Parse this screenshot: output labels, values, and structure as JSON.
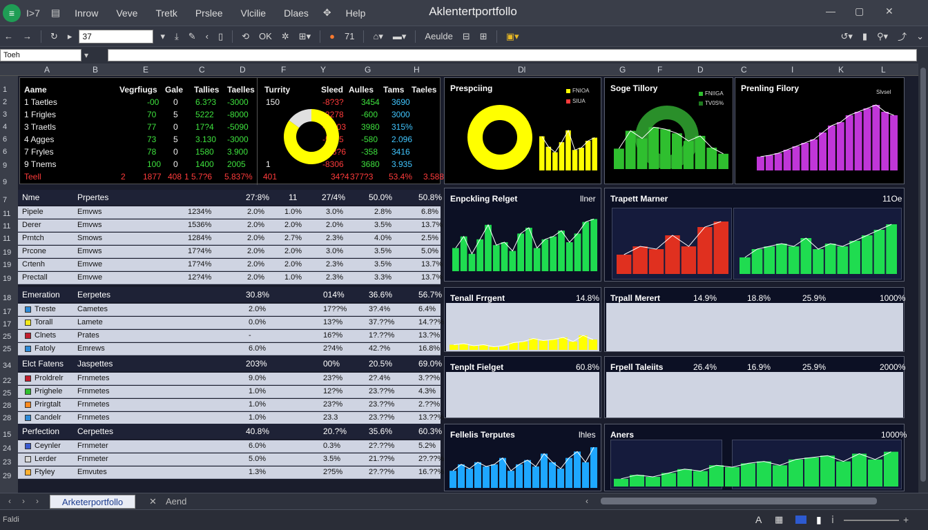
{
  "app": {
    "title": "Aklentertportfollo",
    "menu": [
      "Inrow",
      "Veve",
      "Tretk",
      "Prslee",
      "Vlcilie",
      "Dlaes",
      "Help"
    ],
    "menu_prefix": "I>7"
  },
  "toolbar": {
    "font_value": "37",
    "ok_label": "OK",
    "zoom_label": "71",
    "align_label": "Aeulde"
  },
  "formula": {
    "namebox": "Toeh"
  },
  "columns": [
    "A",
    "B",
    "E",
    "C",
    "D",
    "F",
    "Y",
    "G",
    "H",
    "Dl",
    "G",
    "F",
    "D",
    "C",
    "I",
    "K",
    "L"
  ],
  "rows": [
    "1",
    "2",
    "3",
    "4",
    "6",
    "6",
    "9",
    "9",
    "7",
    "11",
    "11",
    "11",
    "19",
    "19",
    "19",
    "18",
    "17",
    "17",
    "25",
    "25",
    "34",
    "22",
    "25",
    "28",
    "28",
    "15",
    "24",
    "23",
    "29"
  ],
  "top_table": {
    "header": [
      "Aame",
      "Vegrfiugs",
      "Gale",
      "Tallies",
      "Taelles",
      "Turrity",
      "Sleed",
      "Aulles",
      "Tams",
      "Taeles"
    ],
    "rows": [
      [
        "1 Taetles",
        "-00",
        "0",
        "6.3?3",
        "-3000",
        "150",
        "-8?3?",
        "3454",
        "3690"
      ],
      [
        "1 Frigles",
        "70",
        "5",
        "5222",
        "-8000",
        "",
        "-3278",
        "-600",
        "3000"
      ],
      [
        "3 Traetls",
        "77",
        "0",
        "17?4",
        "-5090",
        "",
        "-8.103",
        "3980",
        "315%"
      ],
      [
        "4 Agges",
        "73",
        "5",
        "3.130",
        "-3000",
        "",
        "-5295",
        "-580",
        "2.096"
      ],
      [
        "7 Fryles",
        "78",
        "0",
        "1580",
        "3.900",
        "",
        "-3.3?6",
        "-358",
        "3416"
      ],
      [
        "9 Tnems",
        "100",
        "0",
        "1400",
        "2005",
        "1",
        "-8306",
        "3680",
        "3.935"
      ],
      [
        "Teell",
        "2",
        "1877",
        "408",
        "1 5.7?6",
        "5.837%",
        "401",
        "34?4",
        "377?3",
        "53.4%",
        "3.588"
      ]
    ]
  },
  "panels": {
    "p1": {
      "title": "Prespciing",
      "legend": [
        "FNIOA",
        "SIUA"
      ]
    },
    "p2": {
      "title": "Soge Tillory",
      "legend": [
        "FNIIGA",
        "TV0S%"
      ]
    },
    "p3": {
      "title": "Prenling Filory",
      "legend": [
        "Slvsel"
      ]
    }
  },
  "section1": {
    "header": [
      "Nme",
      "Prpertes",
      "27:8%",
      "11",
      "27/4%",
      "50.0%",
      "50.8%"
    ],
    "rows": [
      [
        "Pipele",
        "Emvws",
        "1234%",
        "2.0%",
        "1.0%",
        "3.0%",
        "2.8%",
        "6.8%"
      ],
      [
        "Derer",
        "Emvws",
        "1536%",
        "2.0%",
        "2.0%",
        "2.0%",
        "3.5%",
        "13.7%"
      ],
      [
        "Prntch",
        "Smows",
        "1284%",
        "2.0%",
        "2.7%",
        "2.3%",
        "4.0%",
        "2.5%"
      ],
      [
        "Prcone",
        "Emvws",
        "17?4%",
        "2.0%",
        "2.0%",
        "3.0%",
        "3.5%",
        "5.0%"
      ],
      [
        "Crtenh",
        "Emvwe",
        "17?4%",
        "2.0%",
        "2.0%",
        "2.3%",
        "3.5%",
        "13.7%"
      ],
      [
        "Prectall",
        "Emvwe",
        "12?4%",
        "2.0%",
        "1.0%",
        "2.3%",
        "3.3%",
        "13.7%"
      ]
    ]
  },
  "section2": {
    "header": [
      "Emeration",
      "Eerpetes",
      "30.8%",
      "014%",
      "36.6%",
      "56.7%"
    ],
    "rows": [
      [
        "Treste",
        "Cametes",
        "2.0%",
        "17??%",
        "3?.4%",
        "6.4%"
      ],
      [
        "Torall",
        "Lamete",
        "0.0%",
        "13?%",
        "37.??%",
        "14.??%"
      ],
      [
        "Clnets",
        "Prates",
        "-",
        "16?%",
        "1?.??%",
        "13.?%"
      ],
      [
        "Fatoly",
        "Emrews",
        "6.0%",
        "2?4%",
        "42.?%",
        "16.8%"
      ]
    ]
  },
  "section3": {
    "header": [
      "Elct Fatens",
      "Jaspettes",
      "203%",
      "00%",
      "20.5%",
      "69.0%"
    ],
    "rows": [
      [
        "Proldrelr",
        "Frnmetes",
        "9.0%",
        "23?%",
        "2?.4%",
        "3.??%"
      ],
      [
        "Prighele",
        "Frnmetes",
        "1.0%",
        "12?%",
        "23.??%",
        "4.3%"
      ],
      [
        "Prirgtalt",
        "Frnmetes",
        "1.0%",
        "23?%",
        "23.??%",
        "2.??%"
      ],
      [
        "Candelr",
        "Frnmetes",
        "1.0%",
        "23.3",
        "23.??%",
        "13.??%"
      ]
    ]
  },
  "section4": {
    "header": [
      "Perfection",
      "Cerpettes",
      "40.8%",
      "20.?%",
      "35.6%",
      "60.3%"
    ],
    "rows": [
      [
        "Ceynler",
        "Frnmeter",
        "6.0%",
        "0.3%",
        "2?.??%",
        "5.2%"
      ],
      [
        "Lerder",
        "Frnmeter",
        "5.0%",
        "3.5%",
        "21.??%",
        "2?.??%"
      ],
      [
        "Ftyley",
        "Emvutes",
        "1.3%",
        "2?5%",
        "2?.??%",
        "16.??%"
      ]
    ]
  },
  "mid_panels": {
    "exp": {
      "title": "Enpckling Relget",
      "right": "llner"
    },
    "tre": {
      "title": "Trapett Marner",
      "right": "11Oe"
    },
    "tr2": {
      "title": "Tenall Frrgent",
      "right": "14.8%"
    },
    "tr3": {
      "title": "Trpall Merert",
      "cols": [
        "14.9%",
        "18.8%",
        "25.9%",
        "1000%"
      ]
    },
    "tr4": {
      "title": "Tenplt Fielget",
      "right": "60.8%"
    },
    "tr5": {
      "title": "Frpell Taleiits",
      "cols": [
        "26.4%",
        "16.9%",
        "25.9%",
        "2000%"
      ]
    },
    "fel": {
      "title": "Fellelis Terputes",
      "right": "lhles"
    },
    "are": {
      "title": "Aners",
      "right": "1000%"
    }
  },
  "sheet": {
    "tab": "Arketerportfollo",
    "tab2": "Aend",
    "status": "Faldi"
  },
  "chart_data": [
    {
      "type": "pie",
      "title": "",
      "values": [
        85,
        15
      ],
      "colors": [
        "#ffff00",
        "#e0e0e0"
      ]
    },
    {
      "type": "bar",
      "title": "Prespciing",
      "values": [
        75,
        52,
        40,
        62,
        88,
        45,
        50,
        65,
        72
      ],
      "color": "#ffff00"
    },
    {
      "type": "bar",
      "title": "Soge Tillory",
      "values": [
        40,
        75,
        60,
        82,
        78,
        70,
        55,
        65,
        42,
        30
      ],
      "color": "#2fbf2f"
    },
    {
      "type": "bar",
      "title": "Prenling Filory",
      "values": [
        20,
        22,
        25,
        30,
        35,
        40,
        45,
        55,
        65,
        70,
        80,
        85,
        90,
        95,
        85,
        80
      ],
      "color": "#c036d8"
    },
    {
      "type": "bar",
      "title": "Enpckling Relget",
      "values": [
        40,
        60,
        30,
        55,
        80,
        45,
        50,
        35,
        65,
        75,
        40,
        55,
        60,
        70,
        50,
        65,
        85,
        90
      ],
      "color": "#1fdc50"
    },
    {
      "type": "bar",
      "title": "Trapett Marner",
      "values": [
        35,
        50,
        45,
        70,
        50,
        85,
        95
      ],
      "color": "#e0301f"
    },
    {
      "type": "bar",
      "title": "",
      "values": [
        30,
        45,
        50,
        55,
        50,
        65,
        45,
        55,
        50,
        60,
        70,
        80,
        90
      ],
      "color": "#1fdc50"
    },
    {
      "type": "bar",
      "title": "Tenall Frrgent",
      "values": [
        25,
        30,
        20,
        25,
        15,
        20,
        35,
        40,
        55,
        45,
        50,
        60,
        40,
        70,
        50
      ],
      "color": "#ffff00"
    },
    {
      "type": "bar",
      "title": "Fellelis Terputes",
      "values": [
        40,
        55,
        45,
        60,
        50,
        55,
        70,
        40,
        55,
        65,
        50,
        80,
        60,
        45,
        70,
        85,
        60,
        95
      ],
      "color": "#1ea7ff"
    },
    {
      "type": "bar",
      "title": "Aners",
      "values": [
        20,
        30,
        25,
        35,
        45,
        40,
        55,
        50,
        60,
        65,
        55,
        70,
        75,
        80,
        65,
        85,
        70,
        90
      ],
      "color": "#1fdc50"
    }
  ]
}
